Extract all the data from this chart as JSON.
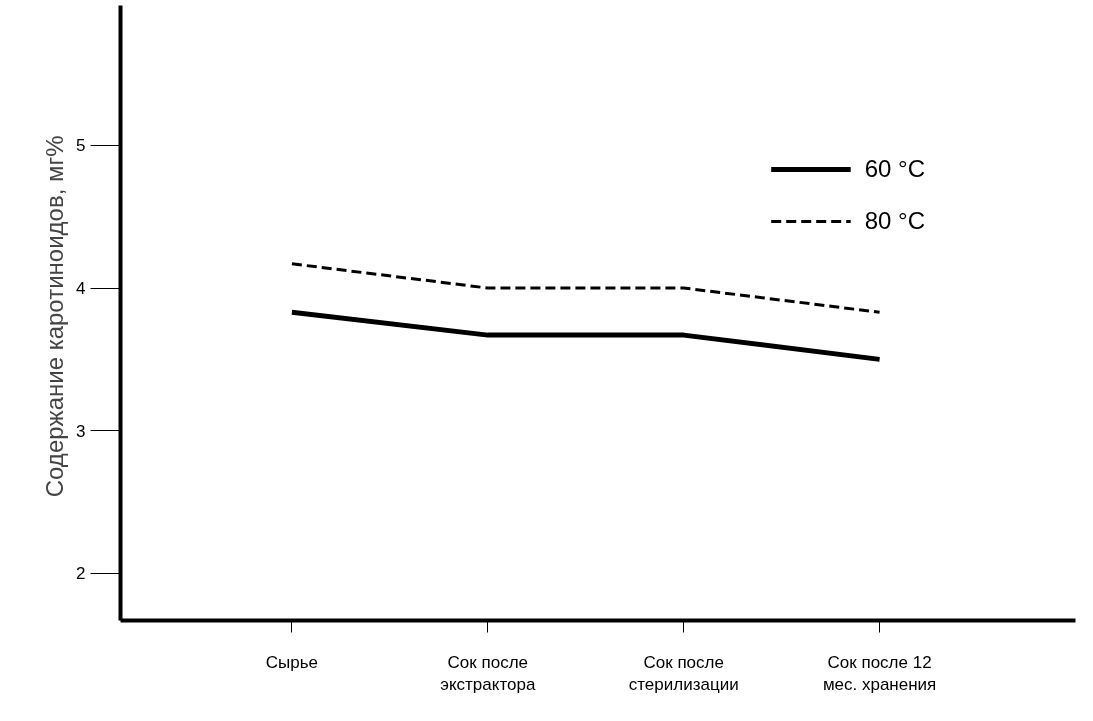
{
  "chart_data": {
    "type": "line",
    "ylabel": "Содержание  каротиноидов, мг%",
    "categories": [
      "Сырье",
      "Сок после\nэкстрактора",
      "Сок после\nстерилизации",
      "Сок после 12\nмес. хранения"
    ],
    "series": [
      {
        "name": "60 °C",
        "color": "#000000",
        "line_style": "solid",
        "values": [
          3.83,
          3.67,
          3.67,
          3.5
        ]
      },
      {
        "name": "80 °C",
        "color": "#000000",
        "line_style": "dashed",
        "values": [
          4.17,
          4.0,
          4.0,
          3.83
        ]
      }
    ],
    "ylim": [
      1.67,
      5.98
    ],
    "yticks": [
      2,
      3,
      4,
      5
    ],
    "grid": false,
    "legend": "top right"
  }
}
